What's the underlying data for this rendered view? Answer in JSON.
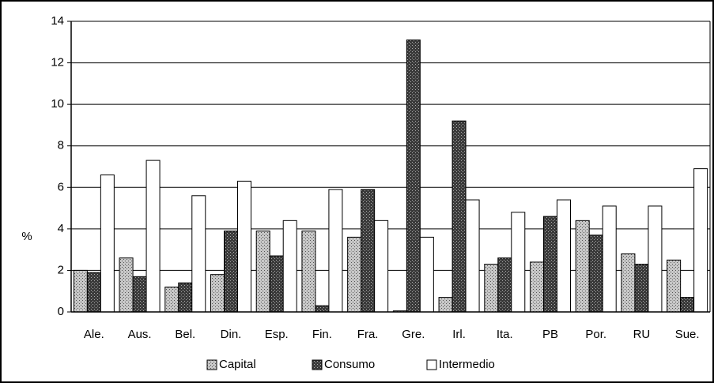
{
  "chart_data": {
    "type": "bar",
    "y_label": "%",
    "categories": [
      "Ale.",
      "Aus.",
      "Bel.",
      "Din.",
      "Esp.",
      "Fin.",
      "Fra.",
      "Gre.",
      "Irl.",
      "Ita.",
      "PB",
      "Por.",
      "RU",
      "Sue."
    ],
    "series": [
      {
        "name": "Capital",
        "color": "#c8c8c8",
        "values": [
          2.0,
          2.6,
          1.2,
          1.8,
          3.9,
          3.9,
          3.6,
          0.05,
          0.7,
          2.3,
          2.4,
          4.4,
          2.8,
          2.5
        ]
      },
      {
        "name": "Consumo",
        "color": "#3a3a3a",
        "values": [
          1.9,
          1.7,
          1.4,
          3.9,
          2.7,
          0.3,
          5.9,
          13.1,
          9.2,
          2.6,
          4.6,
          3.7,
          2.3,
          0.7
        ]
      },
      {
        "name": "Intermedio",
        "color": "#ffffff",
        "values": [
          6.6,
          7.3,
          5.6,
          6.3,
          4.4,
          5.9,
          4.4,
          3.6,
          5.4,
          4.8,
          5.4,
          5.1,
          5.1,
          6.9
        ]
      }
    ],
    "ylim": [
      0,
      14
    ],
    "yticks": [
      0,
      2,
      4,
      6,
      8,
      10,
      12,
      14
    ],
    "grid": true,
    "legend": "bottom"
  }
}
